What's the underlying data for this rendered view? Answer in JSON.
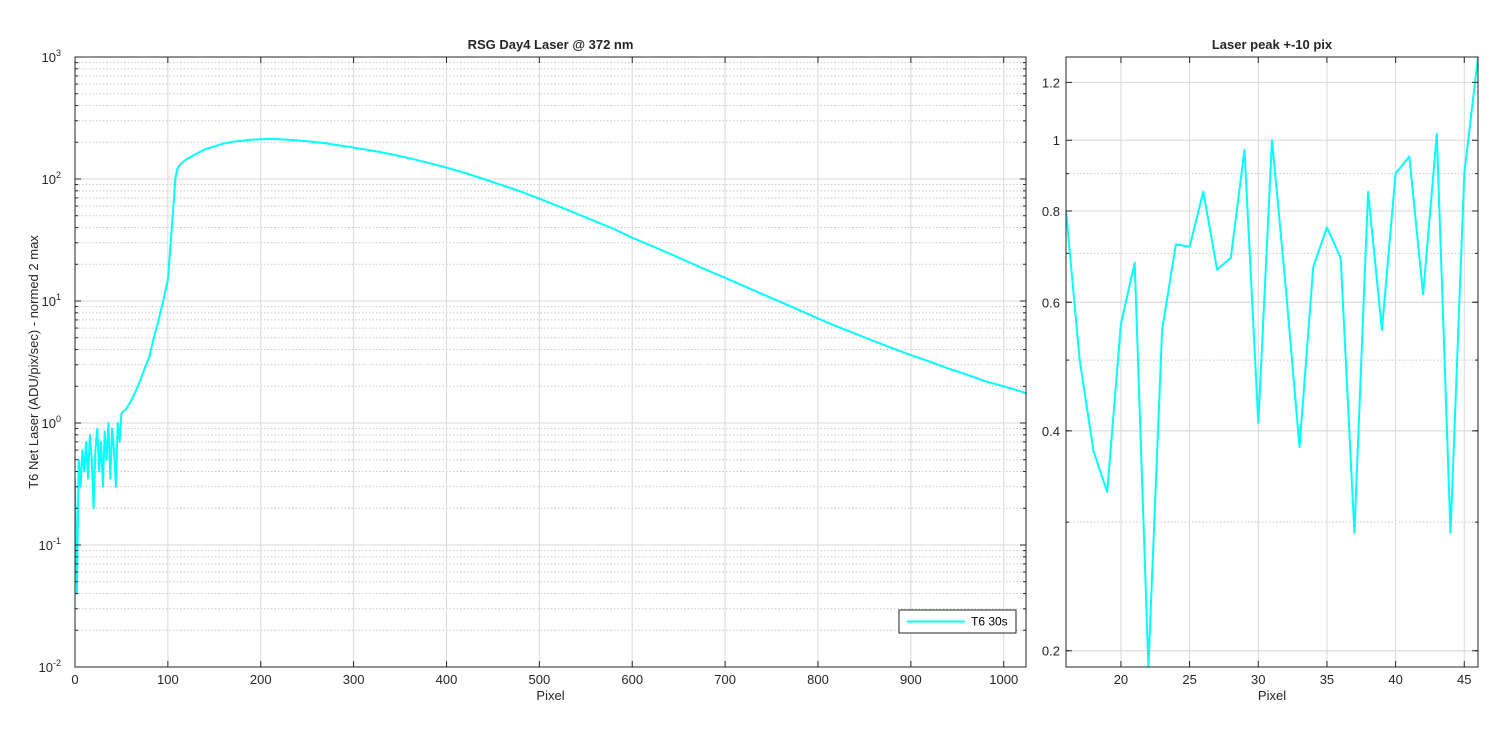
{
  "colors": {
    "series": "#00FFFF",
    "axis": "#262626",
    "grid": "#d9d9d9",
    "background": "#ffffff"
  },
  "chart_data": [
    {
      "type": "line",
      "title": "RSG  Day4 Laser @ 372 nm",
      "xlabel": "Pixel",
      "ylabel": "T6 Net Laser (ADU/pix/sec) - normed 2 max",
      "xlim": [
        0,
        1024
      ],
      "ylim": [
        0.01,
        1000
      ],
      "yscale": "log",
      "grid": true,
      "minor_grid": true,
      "x_ticks": [
        0,
        100,
        200,
        300,
        400,
        500,
        600,
        700,
        800,
        900,
        1000
      ],
      "y_ticks": [
        {
          "value": 0.01,
          "base": "10",
          "exp": "-2"
        },
        {
          "value": 0.1,
          "base": "10",
          "exp": "-1"
        },
        {
          "value": 1,
          "base": "10",
          "exp": "0"
        },
        {
          "value": 10,
          "base": "10",
          "exp": "1"
        },
        {
          "value": 100,
          "base": "10",
          "exp": "2"
        },
        {
          "value": 1000,
          "base": "10",
          "exp": "3"
        }
      ],
      "legend": {
        "location": "bottom-right",
        "entries": [
          "T6 30s"
        ]
      },
      "series": [
        {
          "name": "T6 30s",
          "x": [
            0,
            2,
            4,
            6,
            8,
            10,
            12,
            14,
            16,
            18,
            20,
            22,
            24,
            26,
            28,
            30,
            32,
            34,
            36,
            38,
            40,
            42,
            44,
            46,
            48,
            50,
            55,
            60,
            65,
            70,
            75,
            80,
            85,
            90,
            95,
            100,
            103,
            106,
            108,
            110,
            112,
            115,
            120,
            130,
            140,
            150,
            160,
            170,
            180,
            190,
            200,
            210,
            220,
            230,
            240,
            250,
            260,
            270,
            280,
            290,
            300,
            320,
            340,
            360,
            380,
            400,
            420,
            440,
            460,
            480,
            500,
            520,
            540,
            560,
            580,
            600,
            620,
            640,
            660,
            680,
            700,
            720,
            740,
            760,
            780,
            800,
            820,
            840,
            860,
            880,
            900,
            920,
            940,
            960,
            980,
            1000,
            1010,
            1020,
            1024
          ],
          "y": [
            0.35,
            0.04,
            0.5,
            0.3,
            0.6,
            0.4,
            0.7,
            0.35,
            0.8,
            0.5,
            0.2,
            0.6,
            0.9,
            0.4,
            0.7,
            0.3,
            0.85,
            0.5,
            1.0,
            0.35,
            0.9,
            0.6,
            0.3,
            1.0,
            0.7,
            1.2,
            1.3,
            1.5,
            1.8,
            2.2,
            2.8,
            3.5,
            5,
            7,
            10,
            15,
            30,
            60,
            100,
            120,
            128,
            135,
            145,
            160,
            175,
            185,
            195,
            202,
            206,
            210,
            212,
            213,
            212,
            210,
            207,
            204,
            200,
            196,
            191,
            186,
            181,
            171,
            160,
            148,
            136,
            124,
            112,
            100,
            89,
            79,
            69,
            60,
            52,
            45,
            39,
            33,
            28.5,
            24.5,
            21,
            18,
            15.5,
            13.3,
            11.4,
            9.8,
            8.4,
            7.2,
            6.2,
            5.4,
            4.7,
            4.1,
            3.6,
            3.2,
            2.8,
            2.5,
            2.2,
            2.0,
            1.9,
            1.8,
            1.75
          ]
        }
      ]
    },
    {
      "type": "line",
      "title": "Laser peak +-10 pix",
      "xlabel": "Pixel",
      "ylabel": "",
      "xlim": [
        16,
        46
      ],
      "ylim": [
        0.19,
        1.3
      ],
      "yscale": "log",
      "grid": true,
      "minor_grid": true,
      "x_ticks": [
        20,
        25,
        30,
        35,
        40,
        45
      ],
      "y_ticks": [
        0.2,
        0.4,
        0.6,
        0.8,
        1,
        1.2
      ],
      "series": [
        {
          "name": "",
          "x": [
            16,
            17,
            18,
            19,
            20,
            21,
            22,
            23,
            24,
            25,
            26,
            27,
            28,
            29,
            30,
            31,
            32,
            33,
            34,
            35,
            36,
            37,
            38,
            39,
            40,
            41,
            42,
            43,
            44,
            45,
            46
          ],
          "y": [
            0.8,
            0.5,
            0.375,
            0.33,
            0.56,
            0.68,
            0.19,
            0.55,
            0.72,
            0.715,
            0.85,
            0.665,
            0.69,
            0.97,
            0.41,
            1.0,
            0.63,
            0.38,
            0.67,
            0.76,
            0.69,
            0.29,
            0.85,
            0.55,
            0.9,
            0.95,
            0.615,
            1.02,
            0.29,
            0.9,
            1.3
          ]
        }
      ]
    }
  ]
}
